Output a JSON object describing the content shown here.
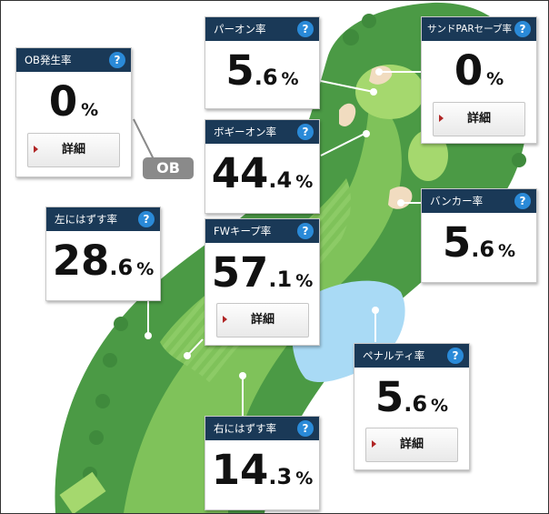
{
  "ob_label": "OB",
  "cards": {
    "ob": {
      "title": "OB発生率",
      "int": "0",
      "dec": "",
      "pct": "%",
      "button": "詳細"
    },
    "par_on": {
      "title": "パーオン率",
      "int": "5",
      "dec": ".6",
      "pct": "%"
    },
    "sand_par_save": {
      "title": "サンドPARセーブ率",
      "int": "0",
      "dec": "",
      "pct": "%",
      "button": "詳細"
    },
    "bogey_on": {
      "title": "ボギーオン率",
      "int": "44",
      "dec": ".4",
      "pct": "%"
    },
    "bunker": {
      "title": "バンカー率",
      "int": "5",
      "dec": ".6",
      "pct": "%"
    },
    "miss_left": {
      "title": "左にはずす率",
      "int": "28",
      "dec": ".6",
      "pct": "%"
    },
    "fw_keep": {
      "title": "FWキープ率",
      "int": "57",
      "dec": ".1",
      "pct": "%",
      "button": "詳細"
    },
    "penalty": {
      "title": "ペナルティ率",
      "int": "5",
      "dec": ".6",
      "pct": "%",
      "button": "詳細"
    },
    "miss_right": {
      "title": "右にはずす率",
      "int": "14",
      "dec": ".3",
      "pct": "%"
    }
  },
  "help_glyph": "?",
  "colors": {
    "header": "#1a3957",
    "help": "#2a8ad8",
    "fairway": "#7fc25a",
    "rough": "#4b9a45",
    "green": "#a5d86e",
    "water": "#a9daf5",
    "bunker": "#f1dcc0",
    "arrow": "#b02626"
  }
}
